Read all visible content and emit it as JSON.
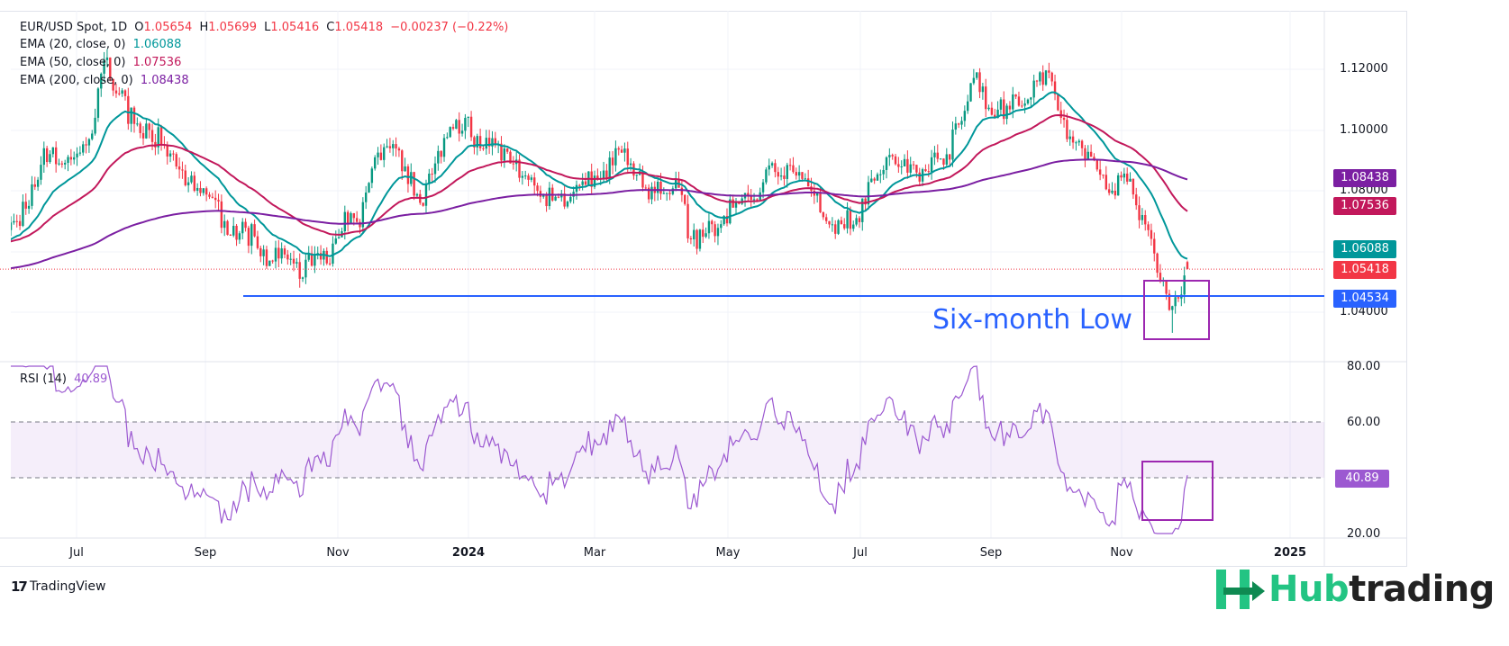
{
  "header": {
    "symbol": "EUR/USD Spot, 1D",
    "o_label": "O",
    "o": "1.05654",
    "h_label": "H",
    "h": "1.05699",
    "l_label": "L",
    "l": "1.05416",
    "c_label": "C",
    "c": "1.05418",
    "change": "−0.00237 (−0.22%)",
    "ema20_label": "EMA (20, close, 0)",
    "ema20": "1.06088",
    "ema50_label": "EMA (50, close, 0)",
    "ema50": "1.07536",
    "ema200_label": "EMA (200, close, 0)",
    "ema200": "1.08438",
    "rsi_label": "RSI (14)",
    "rsi": "40.89"
  },
  "annotation": {
    "text": "Six-month Low",
    "support_level": 1.04534
  },
  "colors": {
    "up": "#089981",
    "down": "#f23645",
    "ema20": "#00979a",
    "ema50": "#c2185b",
    "ema200": "#7b1fa2",
    "rsi": "#9c59d1",
    "support": "#2962ff",
    "box": "#9c27b0"
  },
  "footer": {
    "tradingview": "TradingView",
    "hub_a": "Hub",
    "hub_b": "trading"
  },
  "chart_data": {
    "type": "candlestick",
    "interval": "1D",
    "price_axis": {
      "ticks": [
        "1.12000",
        "1.10000",
        "1.08000",
        "1.04000"
      ],
      "range": [
        1.025,
        1.135
      ]
    },
    "time_axis": {
      "ticks": [
        "Jul",
        "Sep",
        "Nov",
        "2024",
        "Mar",
        "May",
        "Jul",
        "Sep",
        "Nov",
        "2025"
      ]
    },
    "price_badges": {
      "ema200": "1.08438",
      "ema50": "1.07536",
      "ema20": "1.06088",
      "close": "1.05418",
      "support": "1.04534"
    },
    "rsi_axis": {
      "ticks": [
        "80.00",
        "60.00",
        "20.00"
      ],
      "band": [
        40,
        60
      ],
      "range": [
        20,
        80
      ],
      "badge": "40.89"
    },
    "weekly_closes_from": "2023-06-02",
    "weekly_closes": [
      1.07,
      1.075,
      1.094,
      1.089,
      1.091,
      1.097,
      1.123,
      1.112,
      1.102,
      1.1,
      1.095,
      1.087,
      1.08,
      1.078,
      1.07,
      1.066,
      1.065,
      1.057,
      1.059,
      1.051,
      1.059,
      1.056,
      1.073,
      1.068,
      1.091,
      1.094,
      1.088,
      1.076,
      1.089,
      1.101,
      1.104,
      1.094,
      1.095,
      1.089,
      1.085,
      1.078,
      1.078,
      1.078,
      1.082,
      1.084,
      1.094,
      1.089,
      1.081,
      1.079,
      1.084,
      1.064,
      1.066,
      1.069,
      1.076,
      1.077,
      1.087,
      1.085,
      1.085,
      1.08,
      1.07,
      1.069,
      1.071,
      1.084,
      1.091,
      1.088,
      1.086,
      1.091,
      1.092,
      1.103,
      1.119,
      1.105,
      1.108,
      1.108,
      1.116,
      1.116,
      1.097,
      1.094,
      1.087,
      1.08,
      1.083,
      1.072,
      1.053,
      1.042,
      1.0542
    ]
  }
}
